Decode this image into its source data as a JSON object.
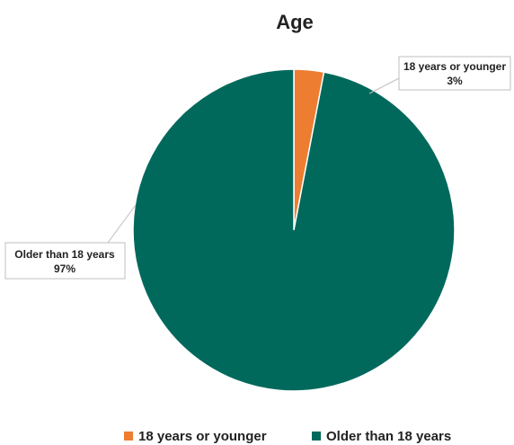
{
  "chart_data": {
    "type": "pie",
    "title": "Age",
    "categories": [
      "18 years or younger",
      "Older than 18 years"
    ],
    "values": [
      3,
      97
    ],
    "data_labels": [
      "3%",
      "97%"
    ],
    "colors": [
      "#ED7D31",
      "#00695C"
    ],
    "start_angle_deg": 0,
    "direction": "clockwise",
    "legend": "bottom",
    "label_style": "callout"
  }
}
